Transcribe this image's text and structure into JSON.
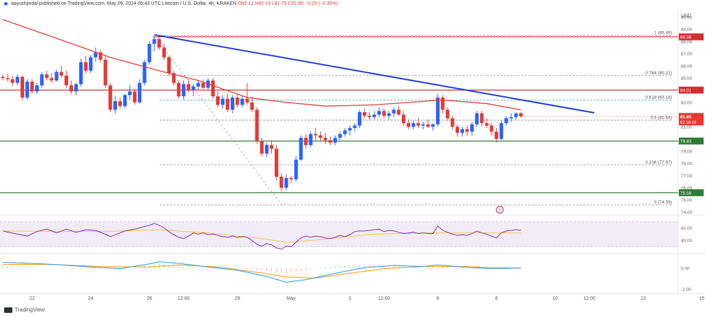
{
  "header": {
    "author": "aayushjindal",
    "published": "published on TradingView.com, May 09, 2024 05:43 UTC",
    "instrument": "Litecoin / U.S. Dollar, 4h, KRAKEN",
    "ohlc": "O82.12 H82.19 L81.75 C81.85 −0.25 (−0.30%)"
  },
  "footer": {
    "brand": "TradingView"
  },
  "colors": {
    "up": "#2962ff",
    "down": "#e53935",
    "ma": "#e53935",
    "trend": "#1f3bd6",
    "resistance": "#d32f2f",
    "support": "#2e7d32",
    "fib": "#26a69a",
    "rsi": "#8e24aa"
  },
  "chart_data": [
    {
      "type": "candlestick",
      "title": "",
      "currency": "USD",
      "y_ticks": [
        "90.00",
        "89.00",
        "88.00",
        "87.00",
        "86.00",
        "85.00",
        "84.00",
        "83.00",
        "82.00",
        "81.00",
        "80.00",
        "79.00",
        "78.00",
        "77.00",
        "76.00",
        "75.00",
        "74.00"
      ],
      "ylim": [
        73.8,
        90.5
      ],
      "x_ticks": [
        "22",
        "24",
        "26",
        "12:00",
        "29",
        "May",
        "3",
        "12:00",
        "6",
        "8",
        "10",
        "12:00",
        "13",
        "15"
      ],
      "x_tick_index": [
        6,
        18,
        30,
        37,
        48,
        59,
        71,
        78,
        89,
        101,
        113,
        120,
        131,
        143
      ],
      "candles": [
        [
          85.1,
          85.3,
          84.8,
          85.0
        ],
        [
          85.0,
          85.3,
          84.7,
          84.9
        ],
        [
          84.9,
          85.2,
          84.3,
          84.6
        ],
        [
          84.6,
          85.3,
          84.4,
          85.1
        ],
        [
          85.1,
          85.2,
          83.2,
          83.4
        ],
        [
          83.4,
          84.9,
          83.2,
          84.7
        ],
        [
          84.7,
          84.9,
          83.7,
          83.9
        ],
        [
          83.9,
          84.6,
          83.7,
          84.4
        ],
        [
          84.4,
          85.5,
          84.2,
          85.3
        ],
        [
          85.3,
          85.6,
          84.8,
          85.0
        ],
        [
          85.0,
          85.4,
          84.6,
          84.8
        ],
        [
          84.8,
          85.7,
          84.7,
          85.5
        ],
        [
          85.5,
          86.0,
          85.0,
          85.2
        ],
        [
          85.2,
          85.6,
          84.2,
          84.4
        ],
        [
          84.4,
          84.8,
          83.7,
          83.9
        ],
        [
          83.9,
          84.6,
          83.6,
          84.5
        ],
        [
          84.5,
          86.6,
          84.3,
          86.3
        ],
        [
          86.3,
          86.8,
          85.4,
          85.6
        ],
        [
          85.6,
          86.9,
          85.4,
          86.7
        ],
        [
          86.7,
          87.5,
          86.3,
          87.1
        ],
        [
          87.1,
          87.3,
          86.3,
          86.5
        ],
        [
          86.5,
          86.8,
          84.2,
          84.4
        ],
        [
          84.4,
          84.6,
          82.2,
          82.4
        ],
        [
          82.4,
          83.5,
          82.1,
          83.1
        ],
        [
          83.1,
          83.4,
          82.5,
          82.7
        ],
        [
          82.7,
          83.7,
          82.5,
          83.6
        ],
        [
          83.6,
          84.4,
          83.2,
          83.9
        ],
        [
          83.9,
          84.1,
          82.8,
          83.0
        ],
        [
          83.0,
          84.9,
          82.9,
          84.6
        ],
        [
          84.6,
          86.5,
          84.4,
          86.3
        ],
        [
          86.3,
          88.0,
          86.1,
          87.8
        ],
        [
          87.8,
          88.4,
          87.2,
          88.2
        ],
        [
          88.2,
          88.5,
          87.3,
          87.5
        ],
        [
          87.5,
          87.8,
          86.5,
          86.7
        ],
        [
          86.7,
          86.8,
          85.2,
          85.4
        ],
        [
          85.4,
          85.6,
          84.4,
          84.6
        ],
        [
          84.6,
          84.8,
          83.3,
          83.5
        ],
        [
          83.5,
          84.8,
          83.2,
          84.5
        ],
        [
          84.5,
          84.9,
          83.8,
          84.0
        ],
        [
          84.0,
          84.5,
          83.5,
          84.3
        ],
        [
          84.3,
          84.8,
          84.0,
          84.6
        ],
        [
          84.6,
          84.9,
          84.1,
          84.2
        ],
        [
          84.2,
          85.0,
          84.0,
          84.8
        ],
        [
          84.8,
          85.0,
          83.3,
          83.5
        ],
        [
          83.5,
          83.9,
          82.6,
          82.8
        ],
        [
          82.8,
          83.6,
          82.5,
          83.3
        ],
        [
          83.3,
          83.7,
          82.2,
          82.4
        ],
        [
          82.4,
          83.6,
          82.1,
          83.4
        ],
        [
          83.4,
          83.7,
          82.6,
          82.8
        ],
        [
          82.8,
          83.5,
          82.6,
          83.3
        ],
        [
          83.3,
          84.6,
          82.8,
          83.0
        ],
        [
          83.0,
          83.5,
          82.2,
          82.4
        ],
        [
          82.4,
          82.6,
          79.6,
          79.8
        ],
        [
          79.8,
          80.1,
          78.6,
          78.8
        ],
        [
          78.8,
          79.7,
          78.5,
          79.5
        ],
        [
          79.5,
          79.9,
          78.8,
          79.2
        ],
        [
          79.2,
          79.5,
          76.6,
          76.9
        ],
        [
          76.9,
          77.2,
          75.7,
          76.0
        ],
        [
          76.0,
          77.1,
          75.8,
          76.8
        ],
        [
          76.8,
          77.0,
          76.4,
          76.7
        ],
        [
          76.7,
          78.6,
          76.5,
          78.3
        ],
        [
          78.3,
          80.3,
          78.2,
          80.1
        ],
        [
          80.1,
          80.4,
          79.2,
          79.5
        ],
        [
          79.5,
          80.6,
          79.3,
          80.4
        ],
        [
          80.4,
          80.9,
          79.9,
          80.3
        ],
        [
          80.3,
          80.6,
          79.8,
          80.1
        ],
        [
          80.1,
          80.5,
          79.6,
          79.9
        ],
        [
          79.9,
          80.2,
          79.5,
          79.7
        ],
        [
          79.7,
          80.3,
          79.5,
          80.1
        ],
        [
          80.1,
          80.6,
          79.9,
          80.4
        ],
        [
          80.4,
          80.9,
          80.2,
          80.7
        ],
        [
          80.7,
          81.1,
          80.3,
          80.9
        ],
        [
          80.9,
          81.3,
          80.6,
          81.1
        ],
        [
          81.1,
          82.4,
          80.9,
          82.2
        ],
        [
          82.2,
          82.5,
          81.7,
          81.9
        ],
        [
          81.9,
          82.2,
          81.6,
          81.8
        ],
        [
          81.8,
          82.3,
          81.6,
          82.0
        ],
        [
          82.0,
          82.6,
          81.8,
          82.3
        ],
        [
          82.3,
          82.5,
          81.7,
          81.9
        ],
        [
          81.9,
          82.3,
          81.6,
          82.1
        ],
        [
          82.1,
          82.6,
          81.8,
          82.4
        ],
        [
          82.4,
          82.7,
          81.9,
          82.0
        ],
        [
          82.0,
          82.3,
          81.1,
          81.3
        ],
        [
          81.3,
          81.6,
          80.8,
          81.0
        ],
        [
          81.0,
          81.5,
          80.8,
          81.3
        ],
        [
          81.3,
          81.7,
          80.9,
          81.1
        ],
        [
          81.1,
          81.4,
          80.8,
          81.2
        ],
        [
          81.2,
          81.6,
          80.9,
          81.0
        ],
        [
          81.0,
          81.3,
          80.7,
          81.2
        ],
        [
          81.2,
          83.7,
          81.0,
          83.4
        ],
        [
          83.4,
          83.6,
          82.1,
          82.4
        ],
        [
          82.4,
          82.6,
          81.5,
          81.7
        ],
        [
          81.7,
          81.9,
          80.7,
          81.0
        ],
        [
          81.0,
          81.2,
          80.2,
          80.5
        ],
        [
          80.5,
          81.0,
          80.2,
          80.8
        ],
        [
          80.8,
          81.1,
          80.3,
          80.6
        ],
        [
          80.6,
          81.4,
          80.3,
          81.2
        ],
        [
          81.2,
          82.3,
          81.0,
          82.1
        ],
        [
          82.1,
          82.3,
          81.0,
          81.3
        ],
        [
          81.3,
          81.7,
          80.9,
          81.1
        ],
        [
          81.1,
          81.3,
          80.3,
          80.6
        ],
        [
          80.6,
          80.9,
          79.7,
          80.0
        ],
        [
          80.0,
          81.5,
          79.9,
          81.3
        ],
        [
          81.3,
          81.9,
          81.1,
          81.7
        ],
        [
          81.7,
          82.1,
          81.4,
          81.8
        ],
        [
          81.8,
          82.2,
          81.6,
          82.1
        ],
        [
          82.12,
          82.19,
          81.75,
          81.85
        ]
      ],
      "moving_average": [
        [
          0,
          89.8
        ],
        [
          10,
          88.4
        ],
        [
          22,
          86.7
        ],
        [
          32,
          85.6
        ],
        [
          40,
          84.8
        ],
        [
          50,
          83.4
        ],
        [
          58,
          83.0
        ],
        [
          66,
          82.7
        ],
        [
          76,
          82.8
        ],
        [
          90,
          83.2
        ],
        [
          99,
          82.9
        ],
        [
          106,
          82.4
        ]
      ],
      "trendline": [
        [
          31,
          88.55
        ],
        [
          121,
          82.15
        ]
      ],
      "fib_swing_line": [
        [
          31,
          88.5
        ],
        [
          57,
          74.6
        ]
      ],
      "horizontal_levels": [
        {
          "price": 88.38,
          "label": "88.38",
          "kind": "resistance"
        },
        {
          "price": 84.01,
          "label": "84.01",
          "kind": "resistance"
        },
        {
          "price": 79.83,
          "label": "79.83",
          "kind": "support"
        },
        {
          "price": 75.59,
          "label": "75.59",
          "kind": "support"
        }
      ],
      "fib_levels": [
        {
          "price": 88.49,
          "label": "1 (88.49)"
        },
        {
          "price": 85.21,
          "label": "0.764 (85.21)"
        },
        {
          "price": 83.18,
          "label": "0.618 (83.18)"
        },
        {
          "price": 81.54,
          "label": "0.5 (81.54)"
        },
        {
          "price": 77.87,
          "label": "0.236 (77.87)"
        },
        {
          "price": 74.59,
          "label": "0 (74.59)"
        }
      ],
      "last_price": {
        "price": 81.85,
        "label": "81.85",
        "countdown": "02:16:19"
      }
    },
    {
      "type": "line",
      "title": "",
      "y_ticks": [
        "60.00",
        "40.00"
      ],
      "ylim": [
        20,
        80
      ],
      "band": [
        30,
        70
      ],
      "rsi": [
        [
          0,
          55
        ],
        [
          3,
          50
        ],
        [
          5,
          47
        ],
        [
          7,
          54
        ],
        [
          9,
          58
        ],
        [
          11,
          52
        ],
        [
          13,
          58
        ],
        [
          15,
          53
        ],
        [
          17,
          57
        ],
        [
          19,
          56
        ],
        [
          21,
          50
        ],
        [
          22,
          46
        ],
        [
          24,
          52
        ],
        [
          25,
          55
        ],
        [
          27,
          58
        ],
        [
          29,
          62
        ],
        [
          30,
          64
        ],
        [
          31,
          67
        ],
        [
          32,
          64
        ],
        [
          33,
          60
        ],
        [
          34,
          54
        ],
        [
          35,
          49
        ],
        [
          36,
          45
        ],
        [
          37,
          43
        ],
        [
          38,
          47
        ],
        [
          39,
          52
        ],
        [
          40,
          50
        ],
        [
          41,
          52
        ],
        [
          42,
          49
        ],
        [
          43,
          50
        ],
        [
          44,
          48
        ],
        [
          45,
          46
        ],
        [
          46,
          45
        ],
        [
          47,
          47
        ],
        [
          48,
          45
        ],
        [
          49,
          46
        ],
        [
          50,
          45
        ],
        [
          51,
          40
        ],
        [
          52,
          34
        ],
        [
          53,
          31
        ],
        [
          54,
          35
        ],
        [
          55,
          33
        ],
        [
          56,
          28
        ],
        [
          57,
          26
        ],
        [
          58,
          31
        ],
        [
          59,
          30
        ],
        [
          60,
          37
        ],
        [
          61,
          44
        ],
        [
          62,
          47
        ],
        [
          63,
          45
        ],
        [
          64,
          47
        ],
        [
          65,
          46
        ],
        [
          66,
          44
        ],
        [
          67,
          43
        ],
        [
          68,
          45
        ],
        [
          69,
          48
        ],
        [
          70,
          46
        ],
        [
          71,
          49
        ],
        [
          72,
          54
        ],
        [
          73,
          55
        ],
        [
          74,
          55
        ],
        [
          75,
          56
        ],
        [
          76,
          57
        ],
        [
          77,
          58
        ],
        [
          78,
          54
        ],
        [
          79,
          56
        ],
        [
          80,
          55
        ],
        [
          81,
          53
        ],
        [
          82,
          51
        ],
        [
          83,
          52
        ],
        [
          84,
          53
        ],
        [
          85,
          51
        ],
        [
          86,
          52
        ],
        [
          87,
          51
        ],
        [
          88,
          51
        ],
        [
          89,
          63
        ],
        [
          90,
          56
        ],
        [
          91,
          53
        ],
        [
          92,
          50
        ],
        [
          93,
          48
        ],
        [
          94,
          49
        ],
        [
          95,
          48
        ],
        [
          96,
          51
        ],
        [
          97,
          55
        ],
        [
          98,
          52
        ],
        [
          99,
          50
        ],
        [
          100,
          47
        ],
        [
          101,
          44
        ],
        [
          102,
          52
        ],
        [
          103,
          55
        ],
        [
          104,
          56
        ],
        [
          105,
          57
        ],
        [
          106,
          56
        ]
      ],
      "rsi_ma": [
        [
          0,
          55
        ],
        [
          20,
          54
        ],
        [
          32,
          57
        ],
        [
          42,
          52
        ],
        [
          52,
          44
        ],
        [
          58,
          37
        ],
        [
          66,
          42
        ],
        [
          76,
          50
        ],
        [
          86,
          52
        ],
        [
          96,
          52
        ],
        [
          106,
          52
        ]
      ]
    },
    {
      "type": "line",
      "title": "",
      "y_ticks": [
        "0.00",
        "-2.00"
      ],
      "ylim": [
        -2.3,
        1.3
      ],
      "macd": [
        [
          0,
          0.55
        ],
        [
          6,
          0.45
        ],
        [
          12,
          0.3
        ],
        [
          18,
          0.1
        ],
        [
          24,
          -0.05
        ],
        [
          30,
          0.4
        ],
        [
          32,
          0.6
        ],
        [
          36,
          0.45
        ],
        [
          42,
          0.1
        ],
        [
          48,
          -0.2
        ],
        [
          54,
          -0.8
        ],
        [
          58,
          -1.35
        ],
        [
          62,
          -1.1
        ],
        [
          68,
          -0.5
        ],
        [
          74,
          0.05
        ],
        [
          80,
          0.25
        ],
        [
          86,
          0.15
        ],
        [
          89,
          0.3
        ],
        [
          94,
          0.1
        ],
        [
          100,
          -0.05
        ],
        [
          106,
          0.0
        ]
      ],
      "signal": [
        [
          0,
          0.35
        ],
        [
          10,
          0.35
        ],
        [
          20,
          0.15
        ],
        [
          30,
          0.1
        ],
        [
          36,
          0.3
        ],
        [
          44,
          0.1
        ],
        [
          52,
          -0.4
        ],
        [
          58,
          -0.85
        ],
        [
          64,
          -0.95
        ],
        [
          70,
          -0.55
        ],
        [
          78,
          -0.05
        ],
        [
          86,
          0.15
        ],
        [
          94,
          0.15
        ],
        [
          100,
          0.05
        ],
        [
          106,
          0.0
        ]
      ]
    }
  ]
}
